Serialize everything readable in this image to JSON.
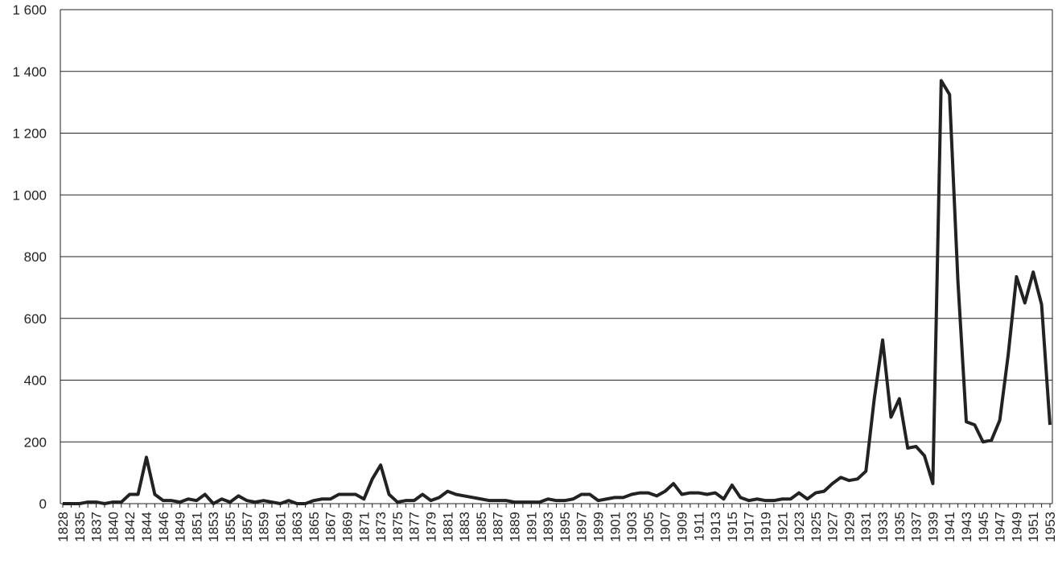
{
  "chart_data": {
    "type": "line",
    "categories": [
      "1828",
      null,
      "1835",
      null,
      "1837",
      null,
      "1840",
      null,
      "1842",
      null,
      "1844",
      null,
      "1846",
      null,
      "1849",
      null,
      "1851",
      null,
      "1853",
      null,
      "1855",
      null,
      "1857",
      null,
      "1859",
      null,
      "1861",
      null,
      "1863",
      null,
      "1865",
      null,
      "1867",
      null,
      "1869",
      null,
      "1871",
      null,
      "1873",
      null,
      "1875",
      null,
      "1877",
      null,
      "1879",
      null,
      "1881",
      null,
      "1883",
      null,
      "1885",
      null,
      "1887",
      null,
      "1889",
      null,
      "1891",
      null,
      "1893",
      null,
      "1895",
      null,
      "1897",
      null,
      "1899",
      null,
      "1901",
      null,
      "1903",
      null,
      "1905",
      null,
      "1907",
      null,
      "1909",
      null,
      "1911",
      null,
      "1913",
      null,
      "1915",
      null,
      "1917",
      null,
      "1919",
      null,
      "1921",
      null,
      "1923",
      null,
      "1925",
      null,
      "1927",
      null,
      "1929",
      null,
      "1931",
      null,
      "1933",
      null,
      "1935",
      null,
      "1937",
      null,
      "1939",
      null,
      "1941",
      null,
      "1943",
      null,
      "1945",
      null,
      "1947",
      null,
      "1949",
      null,
      "1951",
      null,
      "1953"
    ],
    "values": [
      0,
      0,
      0,
      5,
      5,
      0,
      5,
      5,
      30,
      30,
      150,
      30,
      10,
      10,
      5,
      15,
      10,
      30,
      0,
      15,
      5,
      25,
      10,
      5,
      10,
      5,
      0,
      10,
      0,
      0,
      10,
      15,
      15,
      30,
      30,
      30,
      15,
      80,
      125,
      30,
      5,
      10,
      10,
      30,
      10,
      20,
      40,
      30,
      25,
      20,
      15,
      10,
      10,
      10,
      5,
      5,
      5,
      5,
      15,
      10,
      10,
      15,
      30,
      30,
      10,
      15,
      20,
      20,
      30,
      35,
      35,
      25,
      40,
      65,
      30,
      35,
      35,
      30,
      35,
      15,
      60,
      20,
      10,
      15,
      10,
      10,
      15,
      15,
      35,
      15,
      35,
      40,
      65,
      85,
      75,
      80,
      105,
      340,
      530,
      280,
      340,
      180,
      185,
      155,
      65,
      1370,
      1325,
      720,
      265,
      255,
      200,
      205,
      270,
      480,
      735,
      650,
      750,
      645,
      255
    ],
    "color": "#222222",
    "ylim": [
      0,
      1600
    ],
    "yticks": [
      0,
      200,
      400,
      600,
      800,
      {
        "value": 1000,
        "label": "1 000"
      },
      {
        "value": 1200,
        "label": "1 200"
      },
      {
        "value": 1400,
        "label": "1 400"
      },
      {
        "value": 1600,
        "label": "1 600"
      }
    ],
    "grid": true
  }
}
